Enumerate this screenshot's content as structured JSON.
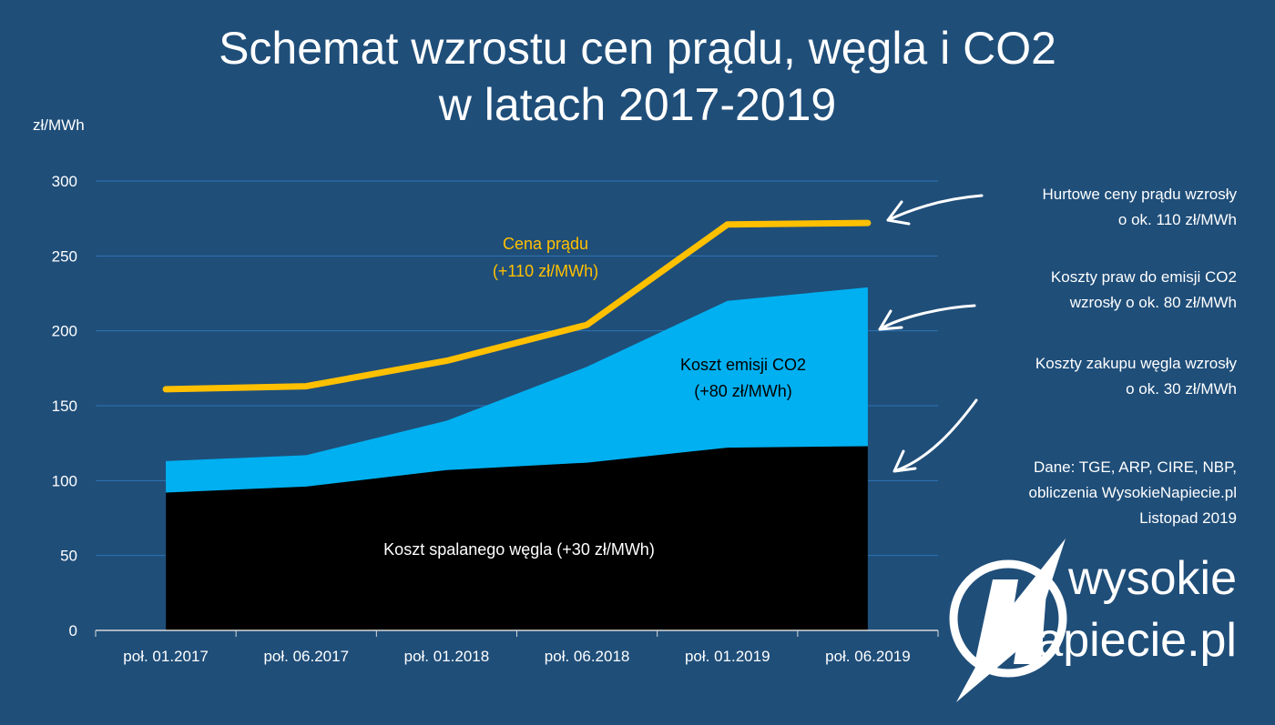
{
  "title_line1": "Schemat wzrostu cen prądu, węgla i CO2",
  "title_line2": "w latach 2017-2019",
  "notes": {
    "price": [
      "Hurtowe ceny prądu wzrosły",
      "o ok. 110 zł/MWh"
    ],
    "co2": [
      "Koszty praw do emisji CO2",
      "wzrosły o ok. 80 zł/MWh"
    ],
    "coal": [
      "Koszty zakupu węgla wzrosły",
      "o ok. 30 zł/MWh"
    ],
    "source": [
      "Dane: TGE, ARP, CIRE, NBP,",
      "obliczenia WysokieNapiecie.pl",
      "Listopad 2019"
    ]
  },
  "logo": {
    "line1": "wysokie",
    "line2": "Napiecie.pl"
  },
  "colors": {
    "background": "#1f4e79",
    "price_line": "#ffc000",
    "co2_area": "#00b0f0",
    "coal_area": "#000000",
    "grid": "#2e75b6"
  },
  "chart_data": {
    "type": "area",
    "title": "Schemat wzrostu cen prądu, węgla i CO2 w latach 2017-2019",
    "ylabel": "zł/MWh",
    "ylim": [
      0,
      300
    ],
    "yticks": [
      "0",
      "50",
      "100",
      "150",
      "200",
      "250",
      "300"
    ],
    "grid": true,
    "categories": [
      "poł. 01.2017",
      "poł. 06.2017",
      "poł. 01.2018",
      "poł. 06.2018",
      "poł. 01.2019",
      "poł. 06.2019"
    ],
    "series": [
      {
        "name": "Koszt spalanego węgla (+30 zł/MWh)",
        "kind": "area",
        "values": [
          92,
          96,
          107,
          112,
          122,
          123
        ]
      },
      {
        "name": "Koszt emisji CO2 (+80 zł/MWh)",
        "kind": "stacked-area-top",
        "values": [
          113,
          117,
          140,
          176,
          220,
          229
        ]
      },
      {
        "name": "Cena prądu (+110 zł/MWh)",
        "kind": "line",
        "values": [
          161,
          163,
          180,
          204,
          271,
          272
        ]
      }
    ],
    "labels": {
      "coal": "Koszt spalanego węgla (+30 zł/MWh)",
      "co2_1": "Koszt emisji CO2",
      "co2_2": "(+80 zł/MWh)",
      "price_1": "Cena prądu",
      "price_2": "(+110 zł/MWh)"
    }
  }
}
